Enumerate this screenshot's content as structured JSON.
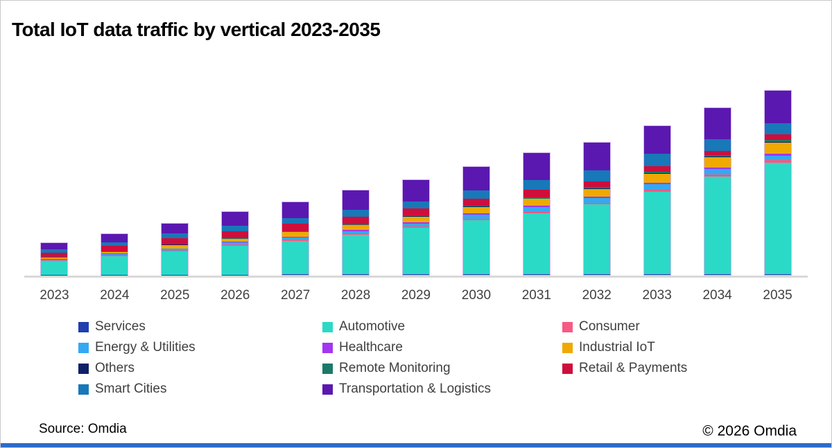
{
  "title": "Total IoT data traffic by vertical 2023-2035",
  "footer": {
    "source": "Source: Omdia",
    "copyright": "© 2026 Omdia"
  },
  "colors": {
    "frame_border": "#c8c8c8",
    "axis_line": "#d8d8d8",
    "brand_strip": "#2e6ac8",
    "title_text": "#000000",
    "label_text": "#404040"
  },
  "chart_data": {
    "type": "bar",
    "stacked": true,
    "title": "Total IoT data traffic by vertical 2023-2035",
    "xlabel": "",
    "ylabel": "",
    "y_axis_shown": false,
    "values_note": "No y-axis scale is shown in the source chart; series values are relative units estimated from bar segment heights (1 unit ≈ 1 px).",
    "legend_position": "bottom",
    "grid": false,
    "categories": [
      "2023",
      "2024",
      "2025",
      "2026",
      "2027",
      "2028",
      "2029",
      "2030",
      "2031",
      "2032",
      "2033",
      "2034",
      "2035"
    ],
    "legend_order": [
      "Services",
      "Automotive",
      "Consumer",
      "Energy & Utilities",
      "Healthcare",
      "Industrial IoT",
      "Others",
      "Remote Monitoring",
      "Retail & Payments",
      "Smart Cities",
      "Transportation & Logistics"
    ],
    "stacking_order_note": "Series listed bottom-to-top as stacked in each bar.",
    "series": [
      {
        "key": "services",
        "name": "Services",
        "color": "#1f3fad",
        "values": [
          0.4,
          0.4,
          0.5,
          0.5,
          0.6,
          0.6,
          0.7,
          0.7,
          0.8,
          0.8,
          0.9,
          0.9,
          1.0
        ]
      },
      {
        "key": "automotive",
        "name": "Automotive",
        "color": "#2bd9c7",
        "values": [
          19.5,
          27,
          33.5,
          41.5,
          48.5,
          57,
          67.5,
          78.5,
          88.5,
          101,
          119.5,
          141,
          161
        ]
      },
      {
        "key": "consumer",
        "name": "Consumer",
        "color": "#f75a84",
        "values": [
          1.0,
          1.2,
          1.5,
          1.8,
          2.0,
          2.2,
          2.2,
          2.3,
          2.4,
          2.5,
          3.0,
          3.3,
          4.2
        ]
      },
      {
        "key": "energy-utilities",
        "name": "Energy & Utilities",
        "color": "#33a9f2",
        "values": [
          1.4,
          1.8,
          2.2,
          2.8,
          3.2,
          3.6,
          4.0,
          5.8,
          6.0,
          7.0,
          7.5,
          7.6,
          6.0
        ]
      },
      {
        "key": "healthcare",
        "name": "Healthcare",
        "color": "#a435f0",
        "values": [
          0.4,
          0.5,
          0.8,
          1.0,
          1.2,
          1.5,
          1.8,
          1.8,
          1.9,
          2.0,
          2.3,
          2.5,
          3.0
        ]
      },
      {
        "key": "industrial-iot",
        "name": "Industrial IoT",
        "color": "#efa900",
        "values": [
          2.4,
          2.2,
          5.0,
          4.0,
          6.5,
          6.7,
          8.0,
          9.0,
          10.0,
          11.0,
          13.3,
          15.0,
          16.3
        ]
      },
      {
        "key": "others",
        "name": "Others",
        "color": "#0e2167",
        "values": [
          0.3,
          0.4,
          0.4,
          0.5,
          0.5,
          0.6,
          0.7,
          0.7,
          0.8,
          0.8,
          0.9,
          1.0,
          1.0
        ]
      },
      {
        "key": "remote-monitoring",
        "name": "Remote Monitoring",
        "color": "#1a7a68",
        "values": [
          0.4,
          0.5,
          0.6,
          0.8,
          1.0,
          1.2,
          1.4,
          1.4,
          1.5,
          1.6,
          1.8,
          2.0,
          2.2
        ]
      },
      {
        "key": "retail-payments",
        "name": "Retail & Payments",
        "color": "#ce0e3c",
        "values": [
          6.0,
          8.0,
          8.3,
          10.0,
          11.0,
          11.0,
          9.3,
          10.0,
          10.7,
          8.3,
          7.6,
          6.0,
          8.0
        ]
      },
      {
        "key": "smart-cities",
        "name": "Smart Cities",
        "color": "#1878b8",
        "values": [
          5.0,
          5.3,
          7.7,
          7.7,
          7.3,
          10.0,
          10.7,
          11.7,
          14.3,
          16.0,
          18.0,
          16.3,
          16.3
        ]
      },
      {
        "key": "transportation-logistics",
        "name": "Transportation & Logistics",
        "color": "#5a18b0",
        "values": [
          9.7,
          12.0,
          14.0,
          20.7,
          23.3,
          28.0,
          31.0,
          34.3,
          39.0,
          40.3,
          40.0,
          45.0,
          47.0
        ]
      }
    ]
  }
}
